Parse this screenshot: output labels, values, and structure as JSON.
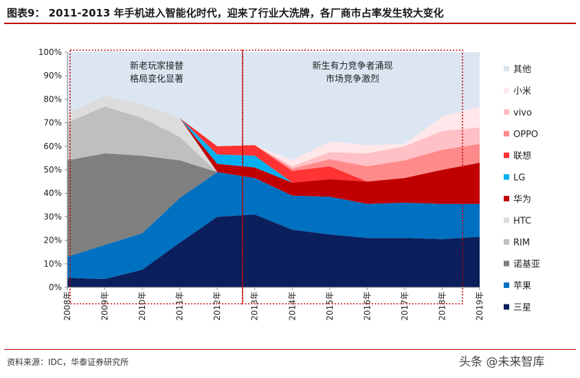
{
  "title": "图表9： 2011-2013 年手机进入智能化时代，迎来了行业大洗牌，各厂商市占率发生较大变化",
  "source": "资料来源：IDC，华泰证券研究所",
  "watermark": "头条 @未来智库",
  "chart_data": {
    "type": "area",
    "stacked": true,
    "x": [
      "2008年",
      "2009年",
      "2010年",
      "2011年",
      "2012年",
      "2013年",
      "2014年",
      "2015年",
      "2016年",
      "2017年",
      "2018年",
      "2019年"
    ],
    "ylim": [
      0,
      100
    ],
    "yticks": [
      "0%",
      "10%",
      "20%",
      "30%",
      "40%",
      "50%",
      "60%",
      "70%",
      "80%",
      "90%",
      "100%"
    ],
    "legend_position": "right",
    "grid": false,
    "annotations": [
      {
        "lines": [
          "新老玩家接替",
          "格局变化显著"
        ]
      },
      {
        "lines": [
          "新生有力竞争者涌现",
          "市场竞争激烈"
        ]
      }
    ],
    "series": [
      {
        "name": "三星",
        "color": "#0b1f5c",
        "values": [
          4,
          3.5,
          7.5,
          19,
          30,
          31,
          24.5,
          22.5,
          21,
          21,
          20.5,
          21.5
        ]
      },
      {
        "name": "苹果",
        "color": "#0070c0",
        "values": [
          9,
          14.5,
          15.5,
          19,
          19,
          15.5,
          14.5,
          16,
          14.5,
          15,
          15,
          14
        ]
      },
      {
        "name": "诺基亚",
        "color": "#7f7f7f",
        "values": [
          41,
          39,
          33,
          16,
          0,
          0,
          0,
          0,
          0,
          0,
          0,
          0
        ]
      },
      {
        "name": "RIM",
        "color": "#bfbfbf",
        "values": [
          16,
          20,
          16,
          10,
          0,
          0,
          0,
          0,
          0,
          0,
          0,
          0
        ]
      },
      {
        "name": "HTC",
        "color": "#dcdcdc",
        "values": [
          4,
          4.5,
          6,
          8,
          0,
          0,
          0,
          0,
          0,
          0,
          0,
          0
        ]
      },
      {
        "name": "华为",
        "color": "#c00000",
        "values": [
          0,
          0,
          0,
          0,
          3.5,
          4.5,
          5.5,
          7.5,
          9.5,
          10.5,
          14.5,
          17.5
        ]
      },
      {
        "name": "LG",
        "color": "#00b0f0",
        "values": [
          0,
          0,
          0,
          0,
          4,
          5,
          0,
          0,
          0,
          0,
          0,
          0
        ]
      },
      {
        "name": "联想",
        "color": "#ff3333",
        "values": [
          0,
          0,
          0,
          0,
          3.5,
          4.5,
          5,
          5.5,
          0,
          0,
          0,
          0
        ]
      },
      {
        "name": "OPPO",
        "color": "#ff8a8a",
        "values": [
          0,
          0,
          0,
          0,
          0,
          0,
          1,
          3,
          6.5,
          7.5,
          8.5,
          8
        ]
      },
      {
        "name": "vivo",
        "color": "#ffc0c6",
        "values": [
          0,
          0,
          0,
          0,
          0,
          0,
          1,
          3,
          5.5,
          6,
          8,
          7
        ]
      },
      {
        "name": "小米",
        "color": "#ffe7ea",
        "values": [
          0,
          0,
          0,
          0,
          0,
          0,
          2.5,
          4.5,
          3.5,
          1,
          6,
          9
        ]
      },
      {
        "name": "其他",
        "color": "#dce6f2",
        "values": [
          26,
          19,
          22,
          28,
          40,
          39.5,
          46,
          38,
          39.5,
          39,
          27.5,
          23
        ]
      }
    ]
  }
}
